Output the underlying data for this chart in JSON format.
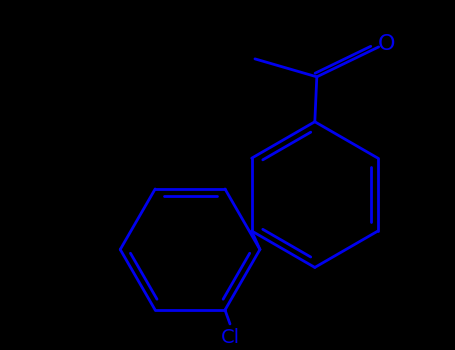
{
  "background_color": "#000000",
  "bond_color": "#0000ee",
  "atom_label_color": "#0000ee",
  "line_width": 2.0,
  "font_size": 14,
  "figsize": [
    4.55,
    3.5
  ],
  "dpi": 100
}
